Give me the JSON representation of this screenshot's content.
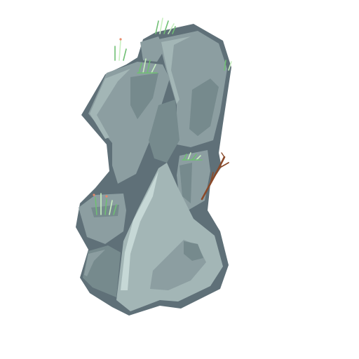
{
  "asset": {
    "kind": "rock-pillar-sprite",
    "background_color": "#ffffff",
    "colors": {
      "outline": "#5f7078",
      "rock_mid": "#8c9ea1",
      "rock_light": "#a3b6b6",
      "rock_highlight": "#c6d8d6",
      "rock_shadow": "#768a8d",
      "grass_dark": "#6fbf73",
      "grass_light": "#c8f0c0",
      "flower": "#e88a6a",
      "branch": "#8a4a2a"
    },
    "decorations": [
      "grass-tuft",
      "grass-tuft",
      "grass-tuft",
      "grass-tuft",
      "grass-tuft",
      "dry-branch"
    ]
  }
}
